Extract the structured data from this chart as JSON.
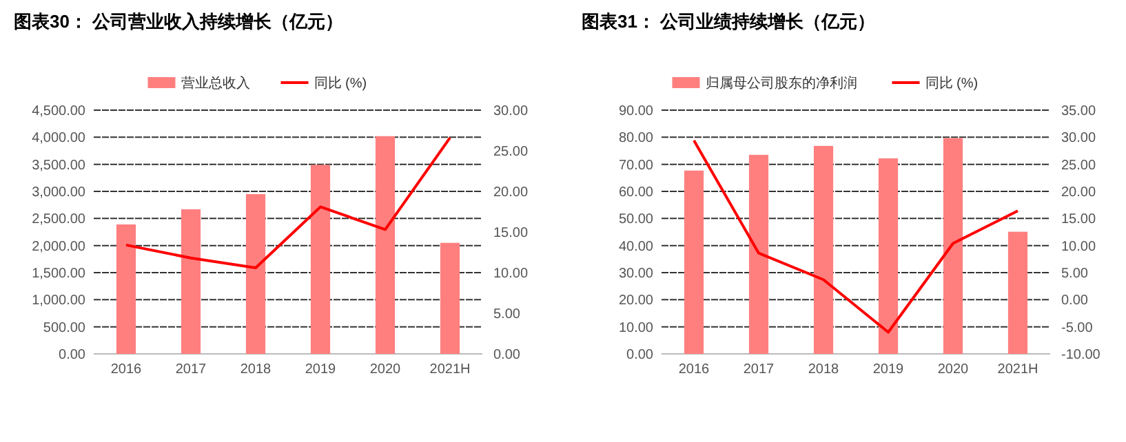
{
  "chart_data": [
    {
      "type": "bar",
      "title": "图表30：  公司营业收入持续增长（亿元）",
      "categories": [
        "2016",
        "2017",
        "2018",
        "2019",
        "2020",
        "2021H"
      ],
      "series": [
        {
          "name": "营业总收入",
          "color": "#ff7f7f",
          "values": [
            2390,
            2670,
            2950,
            3490,
            4020,
            2050
          ]
        },
        {
          "name": "同比 (%)",
          "type": "line",
          "axis": "y2",
          "color": "#ff0000",
          "values": [
            13.4,
            11.8,
            10.6,
            18.1,
            15.3,
            26.6
          ]
        }
      ],
      "ylim": [
        0,
        4500
      ],
      "yticks": [
        {
          "value": 0,
          "label": "0.00"
        },
        {
          "value": 500,
          "label": "500.00"
        },
        {
          "value": 1000,
          "label": "1,000.00"
        },
        {
          "value": 1500,
          "label": "1,500.00"
        },
        {
          "value": 2000,
          "label": "2,000.00"
        },
        {
          "value": 2500,
          "label": "2,500.00"
        },
        {
          "value": 3000,
          "label": "3,000.00"
        },
        {
          "value": 3500,
          "label": "3,500.00"
        },
        {
          "value": 4000,
          "label": "4,000.00"
        },
        {
          "value": 4500,
          "label": "4,500.00"
        }
      ],
      "y2lim": [
        0,
        30
      ],
      "y2ticks": [
        {
          "value": 0,
          "label": "0.00"
        },
        {
          "value": 5,
          "label": "5.00"
        },
        {
          "value": 10,
          "label": "10.00"
        },
        {
          "value": 15,
          "label": "15.00"
        },
        {
          "value": 20,
          "label": "20.00"
        },
        {
          "value": 25,
          "label": "25.00"
        },
        {
          "value": 30,
          "label": "30.00"
        }
      ],
      "grid": "y",
      "legend": "top",
      "marker": "none",
      "line_style": "solid"
    },
    {
      "type": "bar",
      "title": "图表31：  公司业绩持续增长（亿元）",
      "categories": [
        "2016",
        "2017",
        "2018",
        "2019",
        "2020",
        "2021H"
      ],
      "series": [
        {
          "name": "归属母公司股东的净利润",
          "color": "#ff7f7f",
          "values": [
            67.7,
            73.5,
            76.8,
            72.2,
            79.7,
            45.1
          ]
        },
        {
          "name": "同比 (%)",
          "type": "line",
          "axis": "y2",
          "color": "#ff0000",
          "values": [
            29.4,
            8.6,
            3.7,
            -6.0,
            10.4,
            16.4
          ]
        }
      ],
      "ylim": [
        0,
        90
      ],
      "yticks": [
        {
          "value": 0,
          "label": "0.00"
        },
        {
          "value": 10,
          "label": "10.00"
        },
        {
          "value": 20,
          "label": "20.00"
        },
        {
          "value": 30,
          "label": "30.00"
        },
        {
          "value": 40,
          "label": "40.00"
        },
        {
          "value": 50,
          "label": "50.00"
        },
        {
          "value": 60,
          "label": "60.00"
        },
        {
          "value": 70,
          "label": "70.00"
        },
        {
          "value": 80,
          "label": "80.00"
        },
        {
          "value": 90,
          "label": "90.00"
        }
      ],
      "y2lim": [
        -10,
        35
      ],
      "y2ticks": [
        {
          "value": -10,
          "label": "-10.00"
        },
        {
          "value": -5,
          "label": "-5.00"
        },
        {
          "value": 0,
          "label": "0.00"
        },
        {
          "value": 5,
          "label": "5.00"
        },
        {
          "value": 10,
          "label": "10.00"
        },
        {
          "value": 15,
          "label": "15.00"
        },
        {
          "value": 20,
          "label": "20.00"
        },
        {
          "value": 25,
          "label": "25.00"
        },
        {
          "value": 30,
          "label": "30.00"
        },
        {
          "value": 35,
          "label": "35.00"
        }
      ],
      "grid": "y",
      "legend": "top",
      "marker": "none",
      "line_style": "solid"
    }
  ]
}
